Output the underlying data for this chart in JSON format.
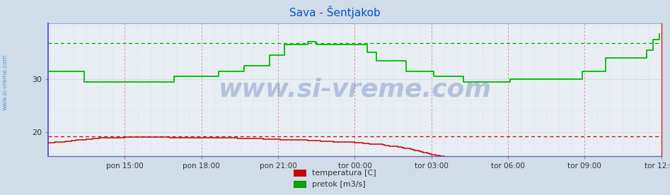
{
  "title": "Sava - Šentjakob",
  "title_color": "#0055cc",
  "title_fontsize": 11,
  "bg_color": "#d0dce8",
  "plot_bg_color": "#e8eef4",
  "watermark": "www.si-vreme.com",
  "watermark_color": "#4466aa",
  "watermark_alpha": 0.32,
  "watermark_fontsize": 26,
  "sidebar_text": "www.si-vreme.com",
  "sidebar_color": "#4488cc",
  "ylim": [
    15.5,
    40.5
  ],
  "yticks": [
    20,
    30
  ],
  "xlim": [
    0,
    288
  ],
  "xtick_labels": [
    "pon 15:00",
    "pon 18:00",
    "pon 21:00",
    "tor 00:00",
    "tor 03:00",
    "tor 06:00",
    "tor 09:00",
    "tor 12:00"
  ],
  "xtick_positions": [
    36,
    72,
    108,
    144,
    180,
    216,
    252,
    288
  ],
  "red_dashed_y": 19.2,
  "green_dashed_y": 36.8,
  "legend_items": [
    {
      "label": "temperatura [C]",
      "color": "#cc0000"
    },
    {
      "label": "pretok [m3/s]",
      "color": "#00aa00"
    }
  ],
  "temp_color": "#cc0000",
  "flow_color": "#00bb00",
  "temp_data": [
    18.0,
    18.0,
    18.0,
    18.1,
    18.1,
    18.1,
    18.2,
    18.2,
    18.3,
    18.3,
    18.3,
    18.4,
    18.4,
    18.5,
    18.5,
    18.5,
    18.6,
    18.6,
    18.7,
    18.7,
    18.7,
    18.8,
    18.8,
    18.8,
    18.9,
    18.9,
    18.9,
    18.9,
    19.0,
    19.0,
    19.0,
    19.0,
    19.0,
    19.0,
    19.0,
    19.0,
    19.1,
    19.1,
    19.1,
    19.1,
    19.1,
    19.1,
    19.1,
    19.1,
    19.1,
    19.1,
    19.1,
    19.1,
    19.1,
    19.1,
    19.1,
    19.1,
    19.1,
    19.1,
    19.1,
    19.1,
    19.1,
    19.0,
    19.0,
    19.0,
    19.0,
    19.0,
    19.0,
    19.0,
    19.0,
    19.0,
    19.0,
    19.0,
    19.0,
    19.0,
    19.0,
    19.0,
    19.0,
    19.0,
    19.0,
    19.0,
    19.0,
    18.9,
    18.9,
    18.9,
    18.9,
    18.9,
    18.9,
    18.9,
    18.9,
    18.9,
    18.9,
    18.9,
    18.9,
    18.8,
    18.8,
    18.8,
    18.8,
    18.8,
    18.8,
    18.8,
    18.8,
    18.8,
    18.8,
    18.8,
    18.8,
    18.7,
    18.7,
    18.7,
    18.7,
    18.7,
    18.7,
    18.7,
    18.7,
    18.6,
    18.6,
    18.6,
    18.6,
    18.6,
    18.6,
    18.5,
    18.5,
    18.5,
    18.5,
    18.5,
    18.5,
    18.5,
    18.4,
    18.4,
    18.4,
    18.4,
    18.4,
    18.4,
    18.3,
    18.3,
    18.3,
    18.3,
    18.3,
    18.3,
    18.2,
    18.2,
    18.2,
    18.2,
    18.2,
    18.2,
    18.1,
    18.1,
    18.1,
    18.1,
    18.0,
    18.0,
    18.0,
    18.0,
    17.9,
    17.9,
    17.9,
    17.8,
    17.8,
    17.8,
    17.7,
    17.7,
    17.7,
    17.6,
    17.5,
    17.5,
    17.4,
    17.4,
    17.3,
    17.3,
    17.2,
    17.2,
    17.1,
    17.0,
    17.0,
    16.9,
    16.8,
    16.7,
    16.6,
    16.5,
    16.4,
    16.3,
    16.2,
    16.1,
    16.0,
    15.9,
    15.8,
    15.7,
    15.6,
    15.6,
    15.5,
    15.5,
    15.4,
    15.4,
    15.4,
    15.3,
    15.3,
    15.3,
    15.3,
    15.3,
    15.2,
    15.2,
    15.2,
    15.2,
    15.2,
    15.2,
    15.2,
    15.2,
    15.2,
    15.2,
    15.2,
    15.2,
    15.2,
    15.2,
    15.2,
    15.2,
    15.2,
    15.2,
    15.2,
    15.2,
    15.2,
    15.2,
    15.2,
    15.2,
    15.2,
    15.2,
    15.2,
    15.2,
    15.2,
    15.2,
    15.2,
    15.2,
    15.2,
    15.2,
    15.2,
    15.2,
    15.2,
    15.2,
    15.2,
    15.2,
    15.2,
    15.2,
    15.2,
    15.2,
    15.2,
    15.2,
    15.2,
    15.2,
    15.2,
    15.2,
    15.2,
    15.2,
    15.2,
    15.2,
    15.2,
    15.2,
    15.2,
    15.2,
    15.2,
    15.2,
    15.2,
    15.2,
    15.2,
    15.2,
    15.2,
    15.2,
    15.2,
    15.2,
    15.2,
    15.2,
    15.2,
    15.2,
    15.2,
    15.2,
    15.2,
    15.2,
    15.2,
    15.2,
    15.2,
    15.2,
    15.2,
    15.2,
    15.2,
    15.2,
    15.2,
    15.2,
    15.2,
    15.2,
    15.2,
    15.2,
    15.2,
    15.2,
    15.2,
    15.2
  ],
  "flow_data": [
    31.5,
    31.5,
    31.5,
    31.5,
    31.5,
    31.5,
    31.5,
    31.5,
    31.5,
    31.5,
    31.5,
    31.5,
    31.5,
    31.5,
    31.5,
    31.5,
    31.5,
    29.5,
    29.5,
    29.5,
    29.5,
    29.5,
    29.5,
    29.5,
    29.5,
    29.5,
    29.5,
    29.5,
    29.5,
    29.5,
    29.5,
    29.5,
    29.5,
    29.5,
    29.5,
    29.5,
    29.5,
    29.5,
    29.5,
    29.5,
    29.5,
    29.5,
    29.5,
    29.5,
    29.5,
    29.5,
    29.5,
    29.5,
    29.5,
    29.5,
    29.5,
    29.5,
    29.5,
    29.5,
    29.5,
    29.5,
    29.5,
    29.5,
    29.5,
    30.5,
    30.5,
    30.5,
    30.5,
    30.5,
    30.5,
    30.5,
    30.5,
    30.5,
    30.5,
    30.5,
    30.5,
    30.5,
    30.5,
    30.5,
    30.5,
    30.5,
    30.5,
    30.5,
    30.5,
    30.5,
    31.5,
    31.5,
    31.5,
    31.5,
    31.5,
    31.5,
    31.5,
    31.5,
    31.5,
    31.5,
    31.5,
    31.5,
    32.5,
    32.5,
    32.5,
    32.5,
    32.5,
    32.5,
    32.5,
    32.5,
    32.5,
    32.5,
    32.5,
    32.5,
    34.5,
    34.5,
    34.5,
    34.5,
    34.5,
    34.5,
    34.5,
    36.5,
    36.5,
    36.5,
    36.5,
    36.5,
    36.5,
    36.5,
    36.5,
    36.5,
    36.5,
    36.5,
    37.0,
    37.0,
    37.0,
    37.0,
    36.5,
    36.5,
    36.5,
    36.5,
    36.5,
    36.5,
    36.5,
    36.5,
    36.5,
    36.5,
    36.5,
    36.5,
    36.5,
    36.5,
    36.5,
    36.5,
    36.5,
    36.5,
    36.5,
    36.5,
    36.5,
    36.5,
    36.5,
    36.5,
    35.0,
    35.0,
    35.0,
    35.0,
    33.5,
    33.5,
    33.5,
    33.5,
    33.5,
    33.5,
    33.5,
    33.5,
    33.5,
    33.5,
    33.5,
    33.5,
    33.5,
    33.5,
    31.5,
    31.5,
    31.5,
    31.5,
    31.5,
    31.5,
    31.5,
    31.5,
    31.5,
    31.5,
    31.5,
    31.5,
    31.5,
    30.5,
    30.5,
    30.5,
    30.5,
    30.5,
    30.5,
    30.5,
    30.5,
    30.5,
    30.5,
    30.5,
    30.5,
    30.5,
    30.5,
    29.5,
    29.5,
    29.5,
    29.5,
    29.5,
    29.5,
    29.5,
    29.5,
    29.5,
    29.5,
    29.5,
    29.5,
    29.5,
    29.5,
    29.5,
    29.5,
    29.5,
    29.5,
    29.5,
    29.5,
    29.5,
    29.5,
    30.0,
    30.0,
    30.0,
    30.0,
    30.0,
    30.0,
    30.0,
    30.0,
    30.0,
    30.0,
    30.0,
    30.0,
    30.0,
    30.0,
    30.0,
    30.0,
    30.0,
    30.0,
    30.0,
    30.0,
    30.0,
    30.0,
    30.0,
    30.0,
    30.0,
    30.0,
    30.0,
    30.0,
    30.0,
    30.0,
    30.0,
    30.0,
    30.0,
    30.0,
    31.5,
    31.5,
    31.5,
    31.5,
    31.5,
    31.5,
    31.5,
    31.5,
    31.5,
    31.5,
    31.5,
    34.0,
    34.0,
    34.0,
    34.0,
    34.0,
    34.0,
    34.0,
    34.0,
    34.0,
    34.0,
    34.0,
    34.0,
    34.0,
    34.0,
    34.0,
    34.0,
    34.0,
    34.0,
    34.0,
    35.5,
    35.5,
    35.5,
    37.5,
    37.5,
    37.5,
    38.5
  ]
}
